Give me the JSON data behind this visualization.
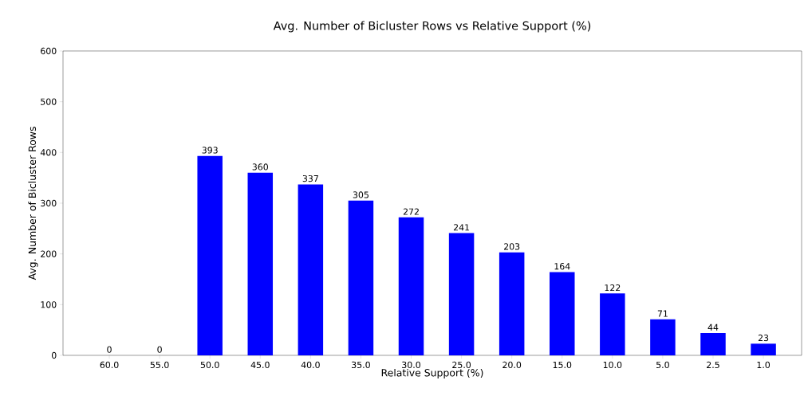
{
  "chart_data": {
    "type": "bar",
    "title": "Avg. Number of Bicluster Rows vs Relative Support (%)",
    "xlabel": "Relative Support (%)",
    "ylabel": "Avg. Number of Bicluster Rows",
    "categories": [
      "60.0",
      "55.0",
      "50.0",
      "45.0",
      "40.0",
      "35.0",
      "30.0",
      "25.0",
      "20.0",
      "15.0",
      "10.0",
      "5.0",
      "2.5",
      "1.0"
    ],
    "values": [
      0,
      0,
      393,
      360,
      337,
      305,
      272,
      241,
      203,
      164,
      122,
      71,
      44,
      23
    ],
    "color": "#0000ff",
    "ylim": [
      0,
      600
    ],
    "yticks": [
      0,
      100,
      200,
      300,
      400,
      500,
      600
    ],
    "data_labels": true,
    "grid": false
  }
}
